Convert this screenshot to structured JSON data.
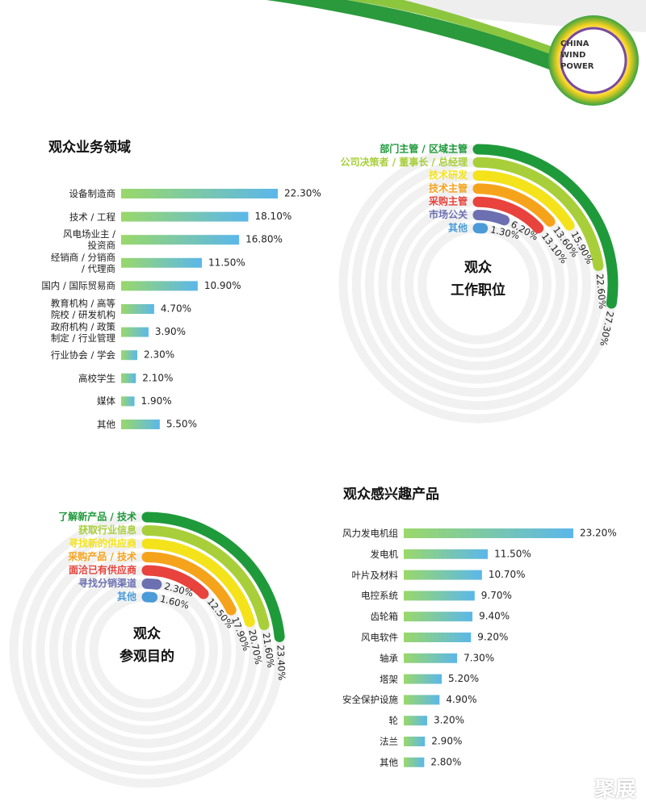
{
  "logo": [
    "CHINA",
    "WIND",
    "POWER"
  ],
  "watermark": "聚展",
  "chart_data": [
    {
      "type": "bar",
      "title": "观众业务领域",
      "categories": [
        "设备制造商",
        "技术 / 工程",
        "风电场业主 /\n投资商",
        "经销商 / 分销商\n/ 代理商",
        "国内 / 国际贸易商",
        "教育机构 / 高等\n院校 / 研发机构",
        "政府机构 / 政策\n制定 / 行业管理",
        "行业协会 / 学会",
        "高校学生",
        "媒体",
        "其他"
      ],
      "values": [
        22.3,
        18.1,
        16.8,
        11.5,
        10.9,
        4.7,
        3.9,
        2.3,
        2.1,
        1.9,
        5.5
      ],
      "value_labels": [
        "22.30%",
        "18.10%",
        "16.80%",
        "11.50%",
        "10.90%",
        "4.70%",
        "3.90%",
        "2.30%",
        "2.10%",
        "1.90%",
        "5.50%"
      ],
      "color": [
        "#9ad86a",
        "#5bb7ea"
      ]
    },
    {
      "type": "radial",
      "title": [
        "观众",
        "工作职位"
      ],
      "categories": [
        "部门主管 / 区域主管",
        "公司决策者 / 董事长 / 总经理",
        "技术研发",
        "技术主管",
        "采购主管",
        "市场公关",
        "其他"
      ],
      "values": [
        27.3,
        22.6,
        15.9,
        13.6,
        13.1,
        6.2,
        1.3
      ],
      "value_labels": [
        "27.30%",
        "22.60%",
        "15.90%",
        "13.60%",
        "13.10%",
        "6.20%",
        "1.30%"
      ],
      "colors": [
        "#1f9a3b",
        "#a8cf3a",
        "#f4e31b",
        "#f6a31c",
        "#e8433c",
        "#6c70b1",
        "#4a9bd8"
      ]
    },
    {
      "type": "radial",
      "title": [
        "观众",
        "参观目的"
      ],
      "categories": [
        "了解新产品 / 技术",
        "获取行业信息",
        "寻找新的供应商",
        "采购产品 / 技术",
        "面洽已有供应商",
        "寻找分销渠道",
        "其他"
      ],
      "values": [
        23.4,
        21.6,
        20.7,
        17.9,
        12.5,
        2.3,
        1.6
      ],
      "value_labels": [
        "23.40%",
        "21.60%",
        "20.70%",
        "17.90%",
        "12.50%",
        "2.30%",
        "1.60%"
      ],
      "colors": [
        "#1f9a3b",
        "#a8cf3a",
        "#f4e31b",
        "#f6a31c",
        "#e8433c",
        "#6c70b1",
        "#4a9bd8"
      ]
    },
    {
      "type": "bar",
      "title": "观众感兴趣产品",
      "categories": [
        "风力发电机组",
        "发电机",
        "叶片及材料",
        "电控系统",
        "齿轮箱",
        "风电软件",
        "轴承",
        "塔架",
        "安全保护设施",
        "轮",
        "法兰",
        "其他"
      ],
      "values": [
        23.2,
        11.5,
        10.7,
        9.7,
        9.4,
        9.2,
        7.3,
        5.2,
        4.9,
        3.2,
        2.9,
        2.8
      ],
      "value_labels": [
        "23.20%",
        "11.50%",
        "10.70%",
        "9.70%",
        "9.40%",
        "9.20%",
        "7.30%",
        "5.20%",
        "4.90%",
        "3.20%",
        "2.90%",
        "2.80%"
      ],
      "color": [
        "#9ad86a",
        "#5bb7ea"
      ]
    }
  ]
}
